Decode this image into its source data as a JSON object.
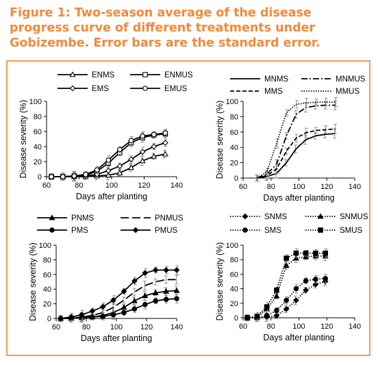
{
  "title": "Figure 1: Two-season average of the disease progress curve of different treatments under Gobizembe. Error bars are the standard error.",
  "chart_data": [
    {
      "type": "line",
      "xlabel": "Days after planting",
      "ylabel": "Disease severity (%)",
      "xlim": [
        60,
        140
      ],
      "ylim": [
        0,
        100
      ],
      "xticks": [
        60,
        80,
        100,
        120,
        140
      ],
      "yticks": [
        0,
        20,
        40,
        60,
        80,
        100
      ],
      "legend": "top",
      "x": [
        63,
        70,
        77,
        84,
        91,
        98,
        105,
        112,
        119,
        126,
        133
      ],
      "series": [
        {
          "name": "ENMS",
          "marker": "triangle-open",
          "line": "solid",
          "values": [
            0,
            0,
            0,
            0,
            1,
            2,
            5,
            12,
            21,
            27,
            30
          ]
        },
        {
          "name": "ENMUS",
          "marker": "square-open",
          "line": "solid",
          "values": [
            0,
            0,
            1,
            2,
            7,
            18,
            32,
            45,
            52,
            55,
            57
          ]
        },
        {
          "name": "EMS",
          "marker": "diamond-open",
          "line": "solid",
          "values": [
            0,
            0,
            0,
            1,
            3,
            8,
            14,
            23,
            33,
            40,
            45
          ]
        },
        {
          "name": "EMUS",
          "marker": "circle-open",
          "line": "solid",
          "values": [
            0,
            0,
            1,
            3,
            9,
            22,
            36,
            48,
            54,
            56,
            58
          ]
        }
      ]
    },
    {
      "type": "line",
      "xlabel": "Days after planting",
      "ylabel": "Disease severity (%)",
      "xlim": [
        60,
        140
      ],
      "ylim": [
        0,
        100
      ],
      "xticks": [
        60,
        80,
        100,
        120,
        140
      ],
      "yticks": [
        0,
        20,
        40,
        60,
        80,
        100
      ],
      "legend": "top",
      "x": [
        70,
        77,
        84,
        91,
        98,
        105,
        112,
        119,
        126
      ],
      "series": [
        {
          "name": "MNMS",
          "marker": "none",
          "line": "solid",
          "values": [
            0,
            2,
            6,
            20,
            38,
            50,
            55,
            57,
            58
          ]
        },
        {
          "name": "MNMUS",
          "marker": "none",
          "line": "dash-dot",
          "values": [
            0,
            5,
            18,
            55,
            83,
            92,
            94,
            95,
            95
          ]
        },
        {
          "name": "MMS",
          "marker": "none",
          "line": "dashed",
          "values": [
            0,
            3,
            12,
            35,
            52,
            59,
            62,
            63,
            64
          ]
        },
        {
          "name": "MMUS",
          "marker": "none",
          "line": "dotted",
          "values": [
            0,
            8,
            45,
            85,
            96,
            98,
            99,
            99,
            99
          ]
        }
      ]
    },
    {
      "type": "line",
      "xlabel": "Days after planting",
      "ylabel": "Disease severity (%)",
      "xlim": [
        60,
        140
      ],
      "ylim": [
        0,
        100
      ],
      "xticks": [
        60,
        80,
        100,
        120,
        140
      ],
      "yticks": [
        0,
        20,
        40,
        60,
        80,
        100
      ],
      "legend": "top",
      "x": [
        63,
        70,
        77,
        84,
        91,
        98,
        105,
        112,
        119,
        126,
        133,
        140
      ],
      "series": [
        {
          "name": "PNMS",
          "marker": "triangle-filled",
          "line": "solid",
          "values": [
            0,
            0,
            1,
            2,
            4,
            8,
            15,
            24,
            31,
            35,
            37,
            38
          ]
        },
        {
          "name": "PNMUS",
          "marker": "none",
          "line": "long-dash",
          "values": [
            0,
            0,
            2,
            4,
            8,
            15,
            25,
            36,
            45,
            50,
            53,
            53
          ]
        },
        {
          "name": "PMS",
          "marker": "circle-filled",
          "line": "solid",
          "values": [
            0,
            0,
            1,
            2,
            3,
            5,
            8,
            13,
            19,
            24,
            26,
            27
          ]
        },
        {
          "name": "PMUS",
          "marker": "diamond-filled",
          "line": "solid",
          "values": [
            0,
            2,
            5,
            10,
            16,
            25,
            37,
            51,
            62,
            66,
            66,
            66
          ]
        }
      ]
    },
    {
      "type": "line",
      "xlabel": "Days after planting",
      "ylabel": "Disease severity (%)",
      "xlim": [
        60,
        140
      ],
      "ylim": [
        0,
        100
      ],
      "xticks": [
        60,
        80,
        100,
        120,
        140
      ],
      "yticks": [
        0,
        20,
        40,
        60,
        80,
        100
      ],
      "legend": "top",
      "x": [
        63,
        70,
        77,
        84,
        91,
        98,
        105,
        112,
        119
      ],
      "series": [
        {
          "name": "SNMS",
          "marker": "diamond-filled",
          "line": "dotted",
          "values": [
            0,
            0,
            1,
            3,
            12,
            24,
            38,
            46,
            50
          ]
        },
        {
          "name": "SNMUS",
          "marker": "triangle-filled",
          "line": "dotted",
          "values": [
            0,
            0,
            12,
            30,
            72,
            82,
            84,
            85,
            85
          ]
        },
        {
          "name": "SMS",
          "marker": "circle-filled",
          "line": "dotted",
          "values": [
            0,
            0,
            3,
            10,
            24,
            40,
            51,
            53,
            54
          ]
        },
        {
          "name": "SMUS",
          "marker": "square-filled",
          "line": "dotted",
          "values": [
            0,
            2,
            15,
            38,
            82,
            89,
            89,
            89,
            89
          ]
        }
      ]
    }
  ]
}
